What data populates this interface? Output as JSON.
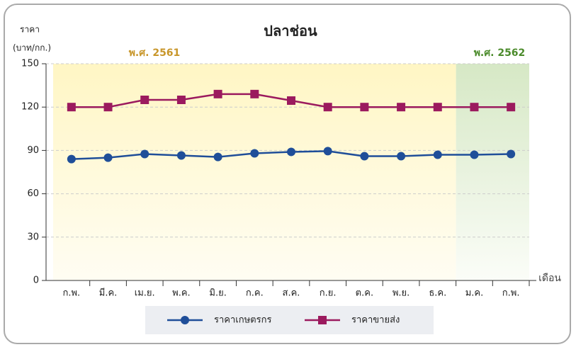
{
  "chart_data": {
    "type": "line",
    "title": "ปลาช่อน",
    "y_label": [
      "ราคา",
      "(บาท/กก.)"
    ],
    "x_label": "เดือน",
    "annotations": [
      "พ.ศ. 2561",
      "พ.ศ. 2562"
    ],
    "categories": [
      "ก.พ.",
      "มี.ค.",
      "เม.ย.",
      "พ.ค.",
      "มิ.ย.",
      "ก.ค.",
      "ส.ค.",
      "ก.ย.",
      "ต.ค.",
      "พ.ย.",
      "ธ.ค.",
      "ม.ค.",
      "ก.พ."
    ],
    "series": [
      {
        "name": "ราคาเกษตรกร",
        "color": "#1f4e99",
        "values": [
          84,
          85,
          87.5,
          86.5,
          85.5,
          88,
          89,
          89.5,
          86,
          86,
          87,
          87,
          87.5
        ]
      },
      {
        "name": "ราคาขายส่ง",
        "color": "#9b1a5e",
        "values": [
          120,
          120,
          125,
          125,
          129,
          129,
          124.5,
          120,
          120,
          120,
          120,
          120,
          120
        ]
      }
    ],
    "ylim": [
      0,
      150
    ],
    "yticks": [
      0,
      30,
      60,
      90,
      120,
      150
    ],
    "grid": true
  }
}
